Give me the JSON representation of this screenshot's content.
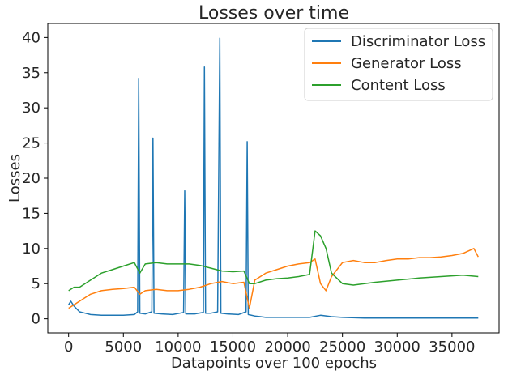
{
  "chart_data": {
    "type": "line",
    "title": "Losses over time",
    "xlabel": "Datapoints over 100 epochs",
    "ylabel": "Losses",
    "xlim": [
      -1900,
      39300
    ],
    "ylim": [
      -2,
      42
    ],
    "xticks": [
      0,
      5000,
      10000,
      15000,
      20000,
      25000,
      30000,
      35000
    ],
    "yticks": [
      0,
      5,
      10,
      15,
      20,
      25,
      30,
      35,
      40
    ],
    "grid": false,
    "legend_position": "top-right",
    "series": [
      {
        "name": "Discriminator Loss",
        "color": "#1f77b4",
        "x": [
          0,
          200,
          500,
          1000,
          1500,
          2000,
          3000,
          4000,
          5000,
          6000,
          6300,
          6400,
          6500,
          7000,
          7600,
          7700,
          7800,
          8500,
          9500,
          10500,
          10600,
          10700,
          11500,
          12300,
          12400,
          12500,
          13000,
          13600,
          13800,
          13900,
          14500,
          15500,
          16200,
          16300,
          16400,
          17000,
          17500,
          18000,
          20000,
          22000,
          23000,
          24000,
          25000,
          27000,
          30000,
          33000,
          35000,
          37400
        ],
        "values": [
          2.0,
          2.5,
          1.8,
          1.0,
          0.8,
          0.6,
          0.5,
          0.5,
          0.5,
          0.6,
          1.0,
          34.2,
          0.8,
          0.7,
          1.0,
          25.7,
          0.8,
          0.7,
          0.6,
          0.9,
          18.2,
          0.7,
          0.7,
          0.9,
          35.8,
          0.8,
          0.8,
          1.0,
          39.9,
          0.8,
          0.7,
          0.6,
          1.0,
          25.2,
          0.6,
          0.4,
          0.3,
          0.2,
          0.2,
          0.2,
          0.5,
          0.3,
          0.2,
          0.1,
          0.1,
          0.1,
          0.1,
          0.1
        ]
      },
      {
        "name": "Generator Loss",
        "color": "#ff7f0e",
        "x": [
          0,
          500,
          1000,
          2000,
          3000,
          4000,
          5000,
          6000,
          6500,
          7000,
          8000,
          9000,
          10000,
          11000,
          12000,
          13000,
          14000,
          15000,
          16000,
          16500,
          17000,
          18000,
          19000,
          20000,
          21000,
          22000,
          22500,
          23000,
          23500,
          24000,
          25000,
          26000,
          27000,
          28000,
          29000,
          30000,
          31000,
          32000,
          33000,
          34000,
          35000,
          36000,
          37000,
          37400
        ],
        "values": [
          1.5,
          2.0,
          2.5,
          3.5,
          4.0,
          4.2,
          4.3,
          4.5,
          3.5,
          4.0,
          4.2,
          4.0,
          4.0,
          4.2,
          4.5,
          5.0,
          5.3,
          5.0,
          5.2,
          1.5,
          5.5,
          6.5,
          7.0,
          7.5,
          7.8,
          8.0,
          8.5,
          5.0,
          4.0,
          6.0,
          8.0,
          8.3,
          8.0,
          8.0,
          8.3,
          8.5,
          8.5,
          8.7,
          8.7,
          8.8,
          9.0,
          9.3,
          10.0,
          8.8
        ]
      },
      {
        "name": "Content Loss",
        "color": "#2ca02c",
        "x": [
          0,
          500,
          1000,
          1500,
          2000,
          3000,
          4000,
          5000,
          6000,
          6500,
          7000,
          8000,
          9000,
          10000,
          11000,
          12000,
          13000,
          14000,
          15000,
          16000,
          16500,
          17000,
          18000,
          19000,
          20000,
          21000,
          22000,
          22500,
          23000,
          23500,
          24000,
          25000,
          26000,
          27000,
          28000,
          30000,
          32000,
          34000,
          36000,
          37400
        ],
        "values": [
          4.0,
          4.5,
          4.5,
          5.0,
          5.5,
          6.5,
          7.0,
          7.5,
          8.0,
          6.5,
          7.8,
          8.0,
          7.8,
          7.8,
          7.8,
          7.6,
          7.2,
          6.8,
          6.7,
          6.8,
          5.0,
          5.0,
          5.5,
          5.7,
          5.8,
          6.0,
          6.3,
          12.5,
          11.8,
          10.0,
          6.5,
          5.0,
          4.8,
          5.0,
          5.2,
          5.5,
          5.8,
          6.0,
          6.2,
          6.0
        ]
      }
    ]
  }
}
